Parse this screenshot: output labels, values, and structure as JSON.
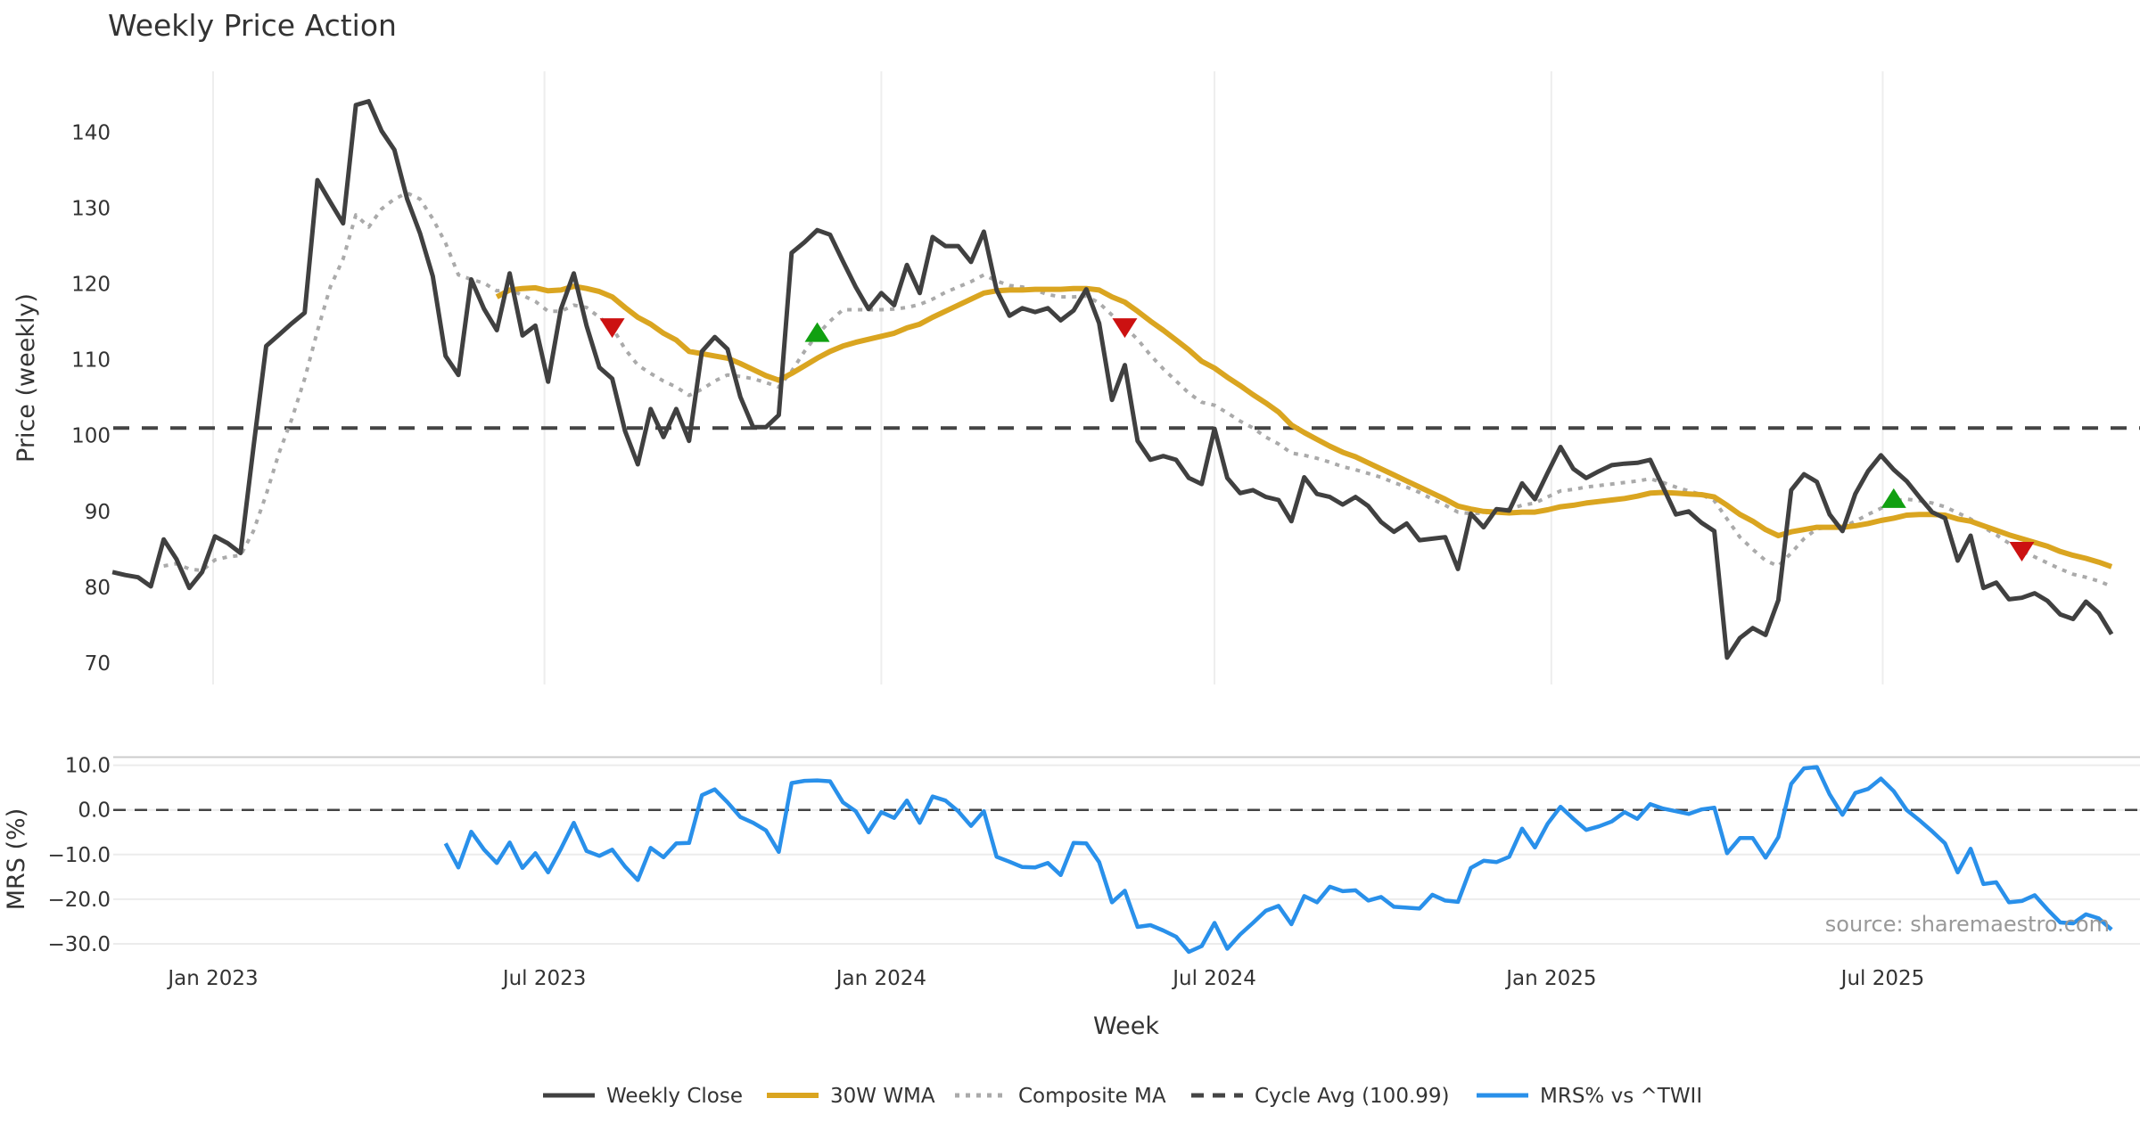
{
  "chart_data": [
    {
      "type": "line",
      "title": "Weekly Price Action",
      "ylabel": "Price (weekly)",
      "ylim": [
        67.2,
        148
      ],
      "yticks": [
        70,
        80,
        90,
        100,
        110,
        120,
        130,
        140
      ],
      "first_week": "2022-11-07",
      "grid": "vertical",
      "series": [
        {
          "name": "Weekly Close",
          "color": "#404040",
          "offset": 0,
          "values": [
            82.0,
            81.6,
            81.3,
            80.1,
            86.3,
            83.7,
            79.9,
            82.0,
            86.7,
            85.8,
            84.5,
            98.4,
            111.8,
            113.3,
            114.8,
            116.2,
            133.7,
            130.8,
            128.0,
            143.6,
            144.1,
            140.2,
            137.7,
            131.2,
            126.7,
            121.0,
            110.5,
            108.0,
            120.6,
            116.7,
            113.9,
            121.4,
            113.2,
            114.5,
            107.1,
            116.7,
            121.4,
            114.5,
            109.0,
            107.5,
            100.6,
            96.2,
            103.5,
            99.8,
            103.5,
            99.3,
            111.1,
            113.0,
            111.4,
            105.1,
            101.1,
            101.1,
            102.7,
            124.1,
            125.5,
            127.1,
            126.5,
            123.0,
            119.6,
            116.7,
            118.8,
            117.2,
            122.5,
            118.8,
            126.2,
            125.0,
            125.0,
            122.9,
            126.9,
            119.2,
            115.8,
            116.8,
            116.3,
            116.8,
            115.2,
            116.5,
            119.3,
            114.8,
            104.7,
            109.3,
            99.3,
            96.8,
            97.3,
            96.8,
            94.4,
            93.6,
            100.9,
            94.4,
            92.4,
            92.8,
            91.9,
            91.5,
            88.7,
            94.5,
            92.3,
            91.9,
            90.9,
            91.9,
            90.7,
            88.6,
            87.3,
            88.4,
            86.2,
            86.4,
            86.6,
            82.4,
            89.7,
            87.9,
            90.3,
            90.1,
            93.7,
            91.6,
            95.1,
            98.5,
            95.6,
            94.4,
            95.3,
            96.1,
            96.3,
            96.4,
            96.8,
            93.2,
            89.6,
            90.0,
            88.5,
            87.4,
            70.7,
            73.3,
            74.6,
            73.7,
            78.3,
            92.8,
            94.9,
            93.9,
            89.6,
            87.4,
            92.3,
            95.3,
            97.4,
            95.5,
            94.0,
            91.9,
            89.9,
            89.1,
            83.5,
            86.8,
            79.9,
            80.6,
            78.4,
            78.6,
            79.2,
            78.2,
            76.4,
            75.8,
            78.1,
            76.6,
            73.8
          ]
        },
        {
          "name": "30W WMA",
          "color": "#DAA520",
          "offset": 30,
          "values": [
            118.3,
            119.2,
            119.4,
            119.5,
            119.1,
            119.2,
            119.7,
            119.4,
            119.0,
            118.3,
            116.9,
            115.6,
            114.7,
            113.5,
            112.6,
            111.1,
            110.8,
            110.5,
            110.2,
            109.5,
            108.7,
            107.9,
            107.3,
            108.2,
            109.2,
            110.2,
            111.1,
            111.8,
            112.3,
            112.7,
            113.1,
            113.5,
            114.2,
            114.7,
            115.6,
            116.4,
            117.2,
            118.0,
            118.8,
            119.1,
            119.2,
            119.2,
            119.3,
            119.3,
            119.3,
            119.4,
            119.4,
            119.2,
            118.3,
            117.6,
            116.4,
            115.1,
            113.9,
            112.6,
            111.3,
            109.8,
            108.9,
            107.7,
            106.6,
            105.4,
            104.3,
            103.1,
            101.4,
            100.4,
            99.5,
            98.6,
            97.8,
            97.2,
            96.4,
            95.6,
            94.8,
            94.0,
            93.2,
            92.4,
            91.6,
            90.7,
            90.3,
            90.0,
            89.9,
            89.8,
            89.9,
            89.9,
            90.2,
            90.6,
            90.8,
            91.1,
            91.3,
            91.5,
            91.7,
            92.0,
            92.4,
            92.5,
            92.4,
            92.3,
            92.2,
            91.9,
            90.8,
            89.6,
            88.7,
            87.6,
            86.8,
            87.3,
            87.6,
            87.9,
            87.9,
            87.9,
            88.1,
            88.4,
            88.8,
            89.1,
            89.5,
            89.6,
            89.6,
            89.5,
            89.0,
            88.7,
            88.1,
            87.5,
            86.9,
            86.4,
            85.9,
            85.4,
            84.7,
            84.2,
            83.8,
            83.3,
            82.7
          ]
        },
        {
          "name": "Composite MA",
          "color": "#AAAAAA",
          "offset": 4,
          "values": [
            82.8,
            83.1,
            82.4,
            82.2,
            83.6,
            84.0,
            84.2,
            87.4,
            92.2,
            97.7,
            102.2,
            107.5,
            113.8,
            119.6,
            123.3,
            129.1,
            127.5,
            129.9,
            131.2,
            132.0,
            131.2,
            128.6,
            125.4,
            121.2,
            120.6,
            120.1,
            119.1,
            119.3,
            118.5,
            117.7,
            116.4,
            116.4,
            117.2,
            116.9,
            115.6,
            114.3,
            111.4,
            109.3,
            108.2,
            107.2,
            106.4,
            105.3,
            106.1,
            107.2,
            108.0,
            107.8,
            107.5,
            107.0,
            106.4,
            108.5,
            111.1,
            113.3,
            115.1,
            116.6,
            116.6,
            116.6,
            116.6,
            116.7,
            116.9,
            117.3,
            118.0,
            118.9,
            119.6,
            120.3,
            121.2,
            120.4,
            119.8,
            119.6,
            119.2,
            118.6,
            118.3,
            118.3,
            118.4,
            117.5,
            115.9,
            114.3,
            112.7,
            110.6,
            108.8,
            107.2,
            105.6,
            104.4,
            104.0,
            103.0,
            101.9,
            101.0,
            99.8,
            98.9,
            97.7,
            97.4,
            97.0,
            96.5,
            95.9,
            95.5,
            95.0,
            94.5,
            93.8,
            93.2,
            92.5,
            91.6,
            90.8,
            89.9,
            89.7,
            89.8,
            90.0,
            90.3,
            90.8,
            91.1,
            91.9,
            92.7,
            92.9,
            93.2,
            93.4,
            93.6,
            93.8,
            94.0,
            94.3,
            93.8,
            93.2,
            92.7,
            92.2,
            91.4,
            89.0,
            86.6,
            85.0,
            83.5,
            82.8,
            84.5,
            86.4,
            87.7,
            87.9,
            87.9,
            88.7,
            89.6,
            90.4,
            91.4,
            91.6,
            91.4,
            91.1,
            90.6,
            89.8,
            89.0,
            87.9,
            86.9,
            85.8,
            84.8,
            84.0,
            83.2,
            82.4,
            81.7,
            81.3,
            80.8,
            80.1
          ]
        }
      ],
      "cycle_avg": {
        "name": "Cycle Avg (100.99)",
        "value": 100.99,
        "color": "#444444"
      },
      "signals": [
        {
          "type": "sell",
          "week": 39,
          "color": "#CC1111"
        },
        {
          "type": "buy",
          "week": 55,
          "color": "#11A011"
        },
        {
          "type": "sell",
          "week": 79,
          "color": "#CC1111"
        },
        {
          "type": "buy",
          "week": 139,
          "color": "#11A011"
        },
        {
          "type": "sell",
          "week": 149,
          "color": "#CC1111"
        }
      ]
    },
    {
      "type": "line",
      "ylabel": "MRS (%)",
      "ylim": [
        -33,
        11
      ],
      "yticks": [
        10,
        0,
        -10,
        -20,
        -30
      ],
      "ytick_labels": [
        "10.0",
        "0.0",
        "−10.0",
        "−20.0",
        "−30.0"
      ],
      "zero_line": 0,
      "series": [
        {
          "name": "MRS% vs ^TWII",
          "color": "#2990EA",
          "offset": 26,
          "values": [
            -7.5,
            -12.9,
            -4.9,
            -8.9,
            -11.9,
            -7.3,
            -13.0,
            -9.7,
            -14.0,
            -8.7,
            -2.9,
            -9.2,
            -10.3,
            -8.9,
            -12.7,
            -15.7,
            -8.5,
            -10.6,
            -7.5,
            -7.4,
            3.3,
            4.6,
            1.7,
            -1.6,
            -2.9,
            -4.6,
            -9.4,
            6.0,
            6.5,
            6.6,
            6.4,
            1.7,
            -0.3,
            -5.0,
            -0.5,
            -1.8,
            2.1,
            -2.9,
            3.0,
            2.1,
            -0.3,
            -3.6,
            -0.3,
            -10.5,
            -11.6,
            -12.8,
            -12.9,
            -11.9,
            -14.6,
            -7.4,
            -7.5,
            -11.7,
            -20.7,
            -18.1,
            -26.2,
            -25.8,
            -27.0,
            -28.4,
            -31.8,
            -30.5,
            -25.3,
            -31.1,
            -27.9,
            -25.3,
            -22.6,
            -21.5,
            -25.6,
            -19.3,
            -20.7,
            -17.2,
            -18.2,
            -18.0,
            -20.3,
            -19.5,
            -21.7,
            -21.9,
            -22.1,
            -19.0,
            -20.3,
            -20.6,
            -13.0,
            -11.4,
            -11.7,
            -10.5,
            -4.2,
            -8.4,
            -3.1,
            0.7,
            -2.0,
            -4.5,
            -3.7,
            -2.6,
            -0.5,
            -2.0,
            1.3,
            0.3,
            -0.3,
            -0.9,
            0.1,
            0.5,
            -9.7,
            -6.3,
            -6.3,
            -10.7,
            -6.1,
            5.8,
            9.3,
            9.6,
            3.5,
            -1.1,
            3.8,
            4.7,
            7.0,
            4.2,
            0.0,
            -2.3,
            -4.8,
            -7.5,
            -14.0,
            -8.7,
            -16.6,
            -16.2,
            -20.7,
            -20.4,
            -19.1,
            -22.3,
            -25.2,
            -25.4,
            -23.4,
            -24.3,
            -26.8
          ]
        }
      ]
    }
  ],
  "xaxis": {
    "label": "Week",
    "ticks": [
      {
        "label": "Jan 2023",
        "date": "2023-01-01"
      },
      {
        "label": "Jul 2023",
        "date": "2023-07-01"
      },
      {
        "label": "Jan 2024",
        "date": "2024-01-01"
      },
      {
        "label": "Jul 2024",
        "date": "2024-07-01"
      },
      {
        "label": "Jan 2025",
        "date": "2025-01-01"
      },
      {
        "label": "Jul 2025",
        "date": "2025-07-01"
      }
    ]
  },
  "legend": {
    "placement": "bottom-center",
    "items": [
      {
        "label": "Weekly Close",
        "color": "#404040",
        "style": "solid"
      },
      {
        "label": "30W WMA",
        "color": "#DAA520",
        "style": "solid"
      },
      {
        "label": "Composite MA",
        "color": "#AAAAAA",
        "style": "dotted"
      },
      {
        "label": "Cycle Avg (100.99)",
        "color": "#444444",
        "style": "dashed"
      },
      {
        "label": "MRS% vs ^TWII",
        "color": "#2990EA",
        "style": "solid"
      }
    ]
  },
  "source": "source: sharemaestro.com"
}
